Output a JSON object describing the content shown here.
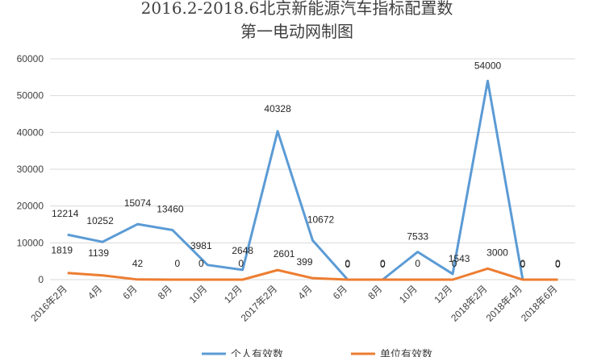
{
  "chart_data": {
    "type": "line",
    "title_line1": "2016.2-2018.6北京新能源汽车指标配置数",
    "title_line2": "第一电动网制图",
    "categories": [
      "2016年2月",
      "4月",
      "6月",
      "8月",
      "10月",
      "12月",
      "2017年2月",
      "4月",
      "6月",
      "8月",
      "10月",
      "12月",
      "2018年2月",
      "2018年4月",
      "2018年6月"
    ],
    "series": [
      {
        "name": "个人有效数",
        "color": "#5b9bd5",
        "values": [
          12214,
          10252,
          15074,
          13460,
          3981,
          2648,
          40328,
          10672,
          0,
          0,
          7533,
          1543,
          54000,
          0,
          0
        ]
      },
      {
        "name": "单位有效数",
        "color": "#ed7d31",
        "values": [
          1819,
          1139,
          42,
          0,
          0,
          0,
          2601,
          399,
          0,
          0,
          0,
          0,
          3000,
          0,
          0
        ]
      }
    ],
    "y_ticks": [
      0,
      10000,
      20000,
      30000,
      40000,
      50000,
      60000
    ],
    "ylim": [
      0,
      60000
    ],
    "grid": true,
    "legend_position": "bottom"
  }
}
